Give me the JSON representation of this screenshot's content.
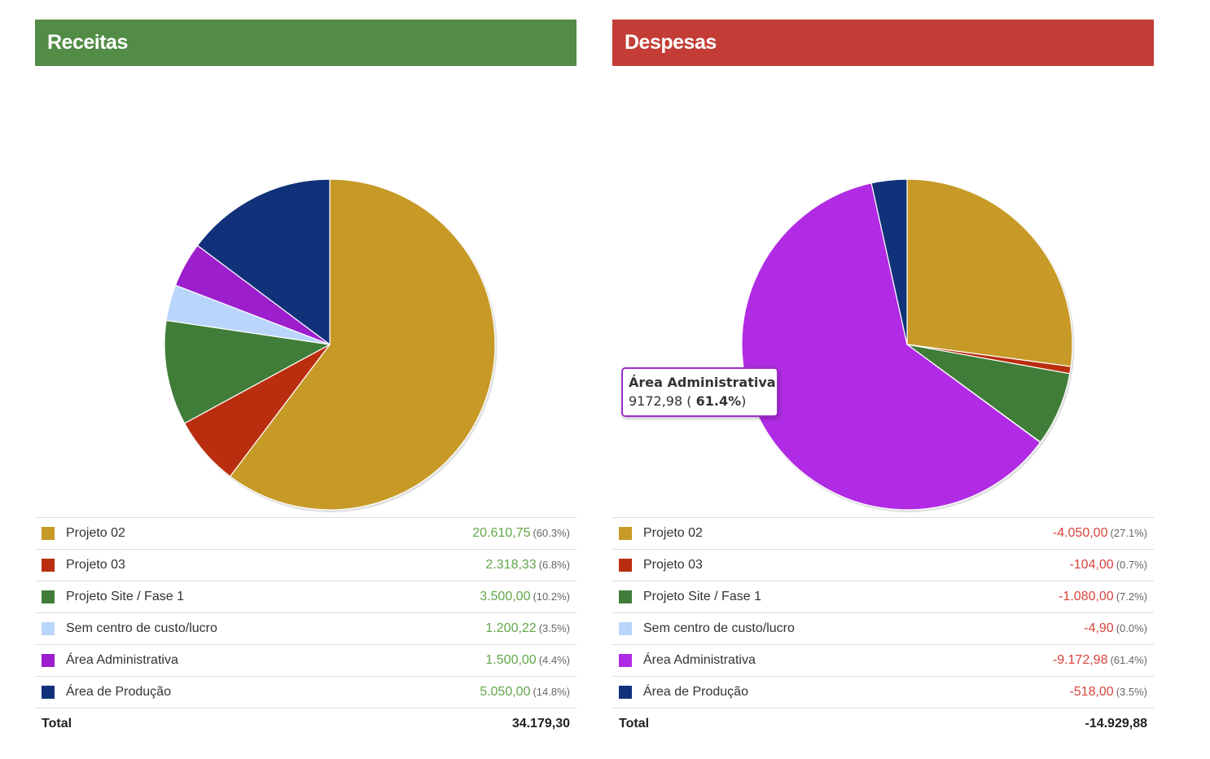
{
  "chart_data": [
    {
      "type": "pie",
      "title": "Receitas",
      "header_color": "#528c46",
      "categories": [
        "Projeto 02",
        "Projeto 03",
        "Projeto Site / Fase 1",
        "Sem centro de custo/lucro",
        "Área Administrativa",
        "Área de Produção"
      ],
      "colors": [
        "#c79a27",
        "#ba2e10",
        "#3f7d38",
        "#b9d5fb",
        "#9c1ecd",
        "#11327a"
      ],
      "values": [
        20610.75,
        2318.33,
        3500.0,
        1200.22,
        1500.0,
        5050.0
      ],
      "amounts": [
        "20.610,75",
        "2.318,33",
        "3.500,00",
        "1.200,22",
        "1.500,00",
        "5.050,00"
      ],
      "percents": [
        "(60.3%)",
        "(6.8%)",
        "(10.2%)",
        "(3.5%)",
        "(4.4%)",
        "(14.8%)"
      ],
      "total_label": "Total",
      "total": "34.179,30"
    },
    {
      "type": "pie",
      "title": "Despesas",
      "header_color": "#c33d36",
      "categories": [
        "Projeto 02",
        "Projeto 03",
        "Projeto Site / Fase 1",
        "Sem centro de custo/lucro",
        "Área Administrativa",
        "Área de Produção"
      ],
      "colors": [
        "#c79a27",
        "#ba2e10",
        "#3f7d38",
        "#b9d5fb",
        "#b02be3",
        "#11327a"
      ],
      "values": [
        4050.0,
        104.0,
        1080.0,
        4.9,
        9172.98,
        518.0
      ],
      "amounts": [
        "-4.050,00",
        "-104,00",
        "-1.080,00",
        "-4,90",
        "-9.172,98",
        "-518,00"
      ],
      "percents": [
        "(27.1%)",
        "(0.7%)",
        "(7.2%)",
        "(0.0%)",
        "(61.4%)",
        "(3.5%)"
      ],
      "total_label": "Total",
      "total": "-14.929,88",
      "tooltip": {
        "title": "Área Administrativa",
        "value": "9172,98",
        "percent": "61.4%",
        "open": "(",
        "close": ")",
        "color": "#9c30c8"
      }
    }
  ]
}
